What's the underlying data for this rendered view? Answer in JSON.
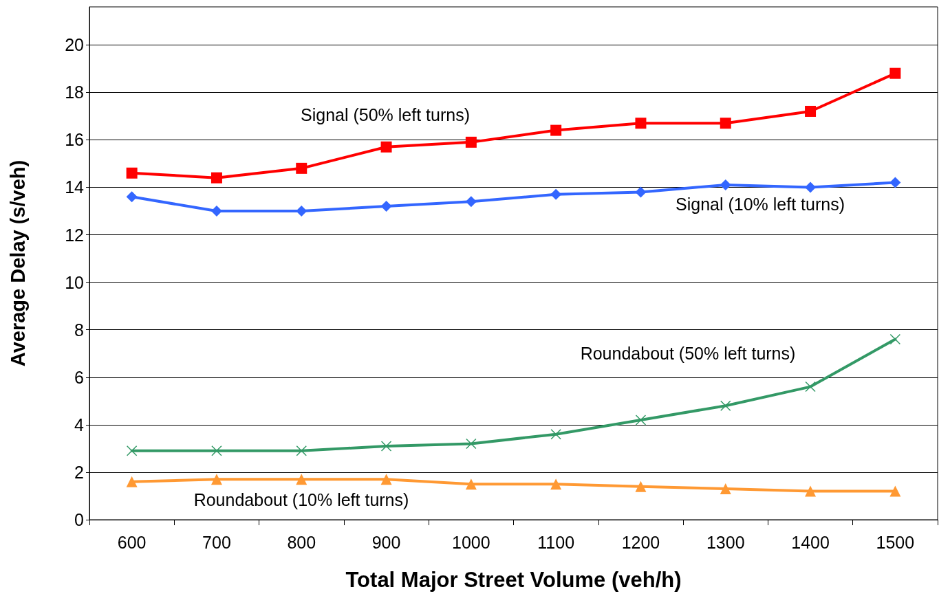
{
  "chart_data": {
    "type": "line",
    "xlabel": "Total Major Street Volume (veh/h)",
    "ylabel": "Average Delay (s/veh)",
    "categories": [
      "600",
      "700",
      "800",
      "900",
      "1000",
      "1100",
      "1200",
      "1300",
      "1400",
      "1500"
    ],
    "series": [
      {
        "name": "Signal (50% left turns)",
        "color": "#ff0000",
        "marker": "square",
        "values": [
          14.6,
          14.4,
          14.8,
          15.7,
          15.9,
          16.4,
          16.7,
          16.7,
          17.2,
          18.8
        ]
      },
      {
        "name": "Signal (10% left turns)",
        "color": "#3366ff",
        "marker": "diamond",
        "values": [
          13.6,
          13.0,
          13.0,
          13.2,
          13.4,
          13.7,
          13.8,
          14.1,
          14.0,
          14.2
        ]
      },
      {
        "name": "Roundabout (50% left turns)",
        "color": "#339966",
        "marker": "cross",
        "values": [
          2.9,
          2.9,
          2.9,
          3.1,
          3.2,
          3.6,
          4.2,
          4.8,
          5.6,
          7.6
        ]
      },
      {
        "name": "Roundabout (10% left turns)",
        "color": "#ff9933",
        "marker": "triangle",
        "values": [
          1.6,
          1.7,
          1.7,
          1.7,
          1.5,
          1.5,
          1.4,
          1.3,
          1.2,
          1.2
        ]
      }
    ],
    "ylim": [
      0,
      21.6
    ],
    "yticks": [
      0,
      2,
      4,
      6,
      8,
      10,
      12,
      14,
      16,
      18,
      20
    ],
    "grid": "y",
    "legend": false,
    "line_style": "solid"
  }
}
